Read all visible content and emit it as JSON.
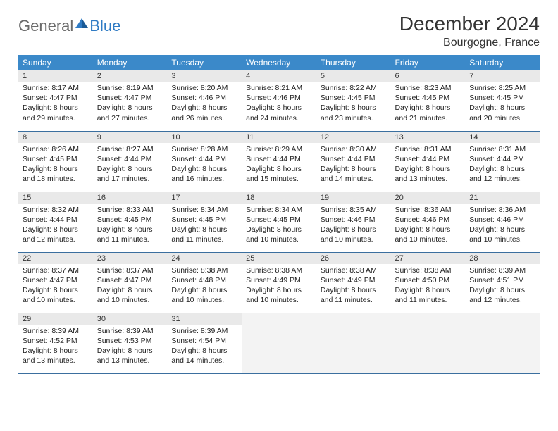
{
  "logo": {
    "text1": "General",
    "text2": "Blue"
  },
  "title": "December 2024",
  "location": "Bourgogne, France",
  "colors": {
    "header_bg": "#3b89c9",
    "header_text": "#ffffff",
    "daynum_bg": "#e9e9e9",
    "row_divider": "#3b6f9f",
    "logo_gray": "#6b6b6b",
    "logo_blue": "#2f7bc4",
    "body_text": "#222222"
  },
  "weekdays": [
    "Sunday",
    "Monday",
    "Tuesday",
    "Wednesday",
    "Thursday",
    "Friday",
    "Saturday"
  ],
  "weeks": [
    [
      {
        "n": "1",
        "sunrise": "8:17 AM",
        "sunset": "4:47 PM",
        "daylight": "8 hours and 29 minutes."
      },
      {
        "n": "2",
        "sunrise": "8:19 AM",
        "sunset": "4:47 PM",
        "daylight": "8 hours and 27 minutes."
      },
      {
        "n": "3",
        "sunrise": "8:20 AM",
        "sunset": "4:46 PM",
        "daylight": "8 hours and 26 minutes."
      },
      {
        "n": "4",
        "sunrise": "8:21 AM",
        "sunset": "4:46 PM",
        "daylight": "8 hours and 24 minutes."
      },
      {
        "n": "5",
        "sunrise": "8:22 AM",
        "sunset": "4:45 PM",
        "daylight": "8 hours and 23 minutes."
      },
      {
        "n": "6",
        "sunrise": "8:23 AM",
        "sunset": "4:45 PM",
        "daylight": "8 hours and 21 minutes."
      },
      {
        "n": "7",
        "sunrise": "8:25 AM",
        "sunset": "4:45 PM",
        "daylight": "8 hours and 20 minutes."
      }
    ],
    [
      {
        "n": "8",
        "sunrise": "8:26 AM",
        "sunset": "4:45 PM",
        "daylight": "8 hours and 18 minutes."
      },
      {
        "n": "9",
        "sunrise": "8:27 AM",
        "sunset": "4:44 PM",
        "daylight": "8 hours and 17 minutes."
      },
      {
        "n": "10",
        "sunrise": "8:28 AM",
        "sunset": "4:44 PM",
        "daylight": "8 hours and 16 minutes."
      },
      {
        "n": "11",
        "sunrise": "8:29 AM",
        "sunset": "4:44 PM",
        "daylight": "8 hours and 15 minutes."
      },
      {
        "n": "12",
        "sunrise": "8:30 AM",
        "sunset": "4:44 PM",
        "daylight": "8 hours and 14 minutes."
      },
      {
        "n": "13",
        "sunrise": "8:31 AM",
        "sunset": "4:44 PM",
        "daylight": "8 hours and 13 minutes."
      },
      {
        "n": "14",
        "sunrise": "8:31 AM",
        "sunset": "4:44 PM",
        "daylight": "8 hours and 12 minutes."
      }
    ],
    [
      {
        "n": "15",
        "sunrise": "8:32 AM",
        "sunset": "4:44 PM",
        "daylight": "8 hours and 12 minutes."
      },
      {
        "n": "16",
        "sunrise": "8:33 AM",
        "sunset": "4:45 PM",
        "daylight": "8 hours and 11 minutes."
      },
      {
        "n": "17",
        "sunrise": "8:34 AM",
        "sunset": "4:45 PM",
        "daylight": "8 hours and 11 minutes."
      },
      {
        "n": "18",
        "sunrise": "8:34 AM",
        "sunset": "4:45 PM",
        "daylight": "8 hours and 10 minutes."
      },
      {
        "n": "19",
        "sunrise": "8:35 AM",
        "sunset": "4:46 PM",
        "daylight": "8 hours and 10 minutes."
      },
      {
        "n": "20",
        "sunrise": "8:36 AM",
        "sunset": "4:46 PM",
        "daylight": "8 hours and 10 minutes."
      },
      {
        "n": "21",
        "sunrise": "8:36 AM",
        "sunset": "4:46 PM",
        "daylight": "8 hours and 10 minutes."
      }
    ],
    [
      {
        "n": "22",
        "sunrise": "8:37 AM",
        "sunset": "4:47 PM",
        "daylight": "8 hours and 10 minutes."
      },
      {
        "n": "23",
        "sunrise": "8:37 AM",
        "sunset": "4:47 PM",
        "daylight": "8 hours and 10 minutes."
      },
      {
        "n": "24",
        "sunrise": "8:38 AM",
        "sunset": "4:48 PM",
        "daylight": "8 hours and 10 minutes."
      },
      {
        "n": "25",
        "sunrise": "8:38 AM",
        "sunset": "4:49 PM",
        "daylight": "8 hours and 10 minutes."
      },
      {
        "n": "26",
        "sunrise": "8:38 AM",
        "sunset": "4:49 PM",
        "daylight": "8 hours and 11 minutes."
      },
      {
        "n": "27",
        "sunrise": "8:38 AM",
        "sunset": "4:50 PM",
        "daylight": "8 hours and 11 minutes."
      },
      {
        "n": "28",
        "sunrise": "8:39 AM",
        "sunset": "4:51 PM",
        "daylight": "8 hours and 12 minutes."
      }
    ],
    [
      {
        "n": "29",
        "sunrise": "8:39 AM",
        "sunset": "4:52 PM",
        "daylight": "8 hours and 13 minutes."
      },
      {
        "n": "30",
        "sunrise": "8:39 AM",
        "sunset": "4:53 PM",
        "daylight": "8 hours and 13 minutes."
      },
      {
        "n": "31",
        "sunrise": "8:39 AM",
        "sunset": "4:54 PM",
        "daylight": "8 hours and 14 minutes."
      },
      null,
      null,
      null,
      null
    ]
  ],
  "labels": {
    "sunrise": "Sunrise: ",
    "sunset": "Sunset: ",
    "daylight": "Daylight: "
  }
}
